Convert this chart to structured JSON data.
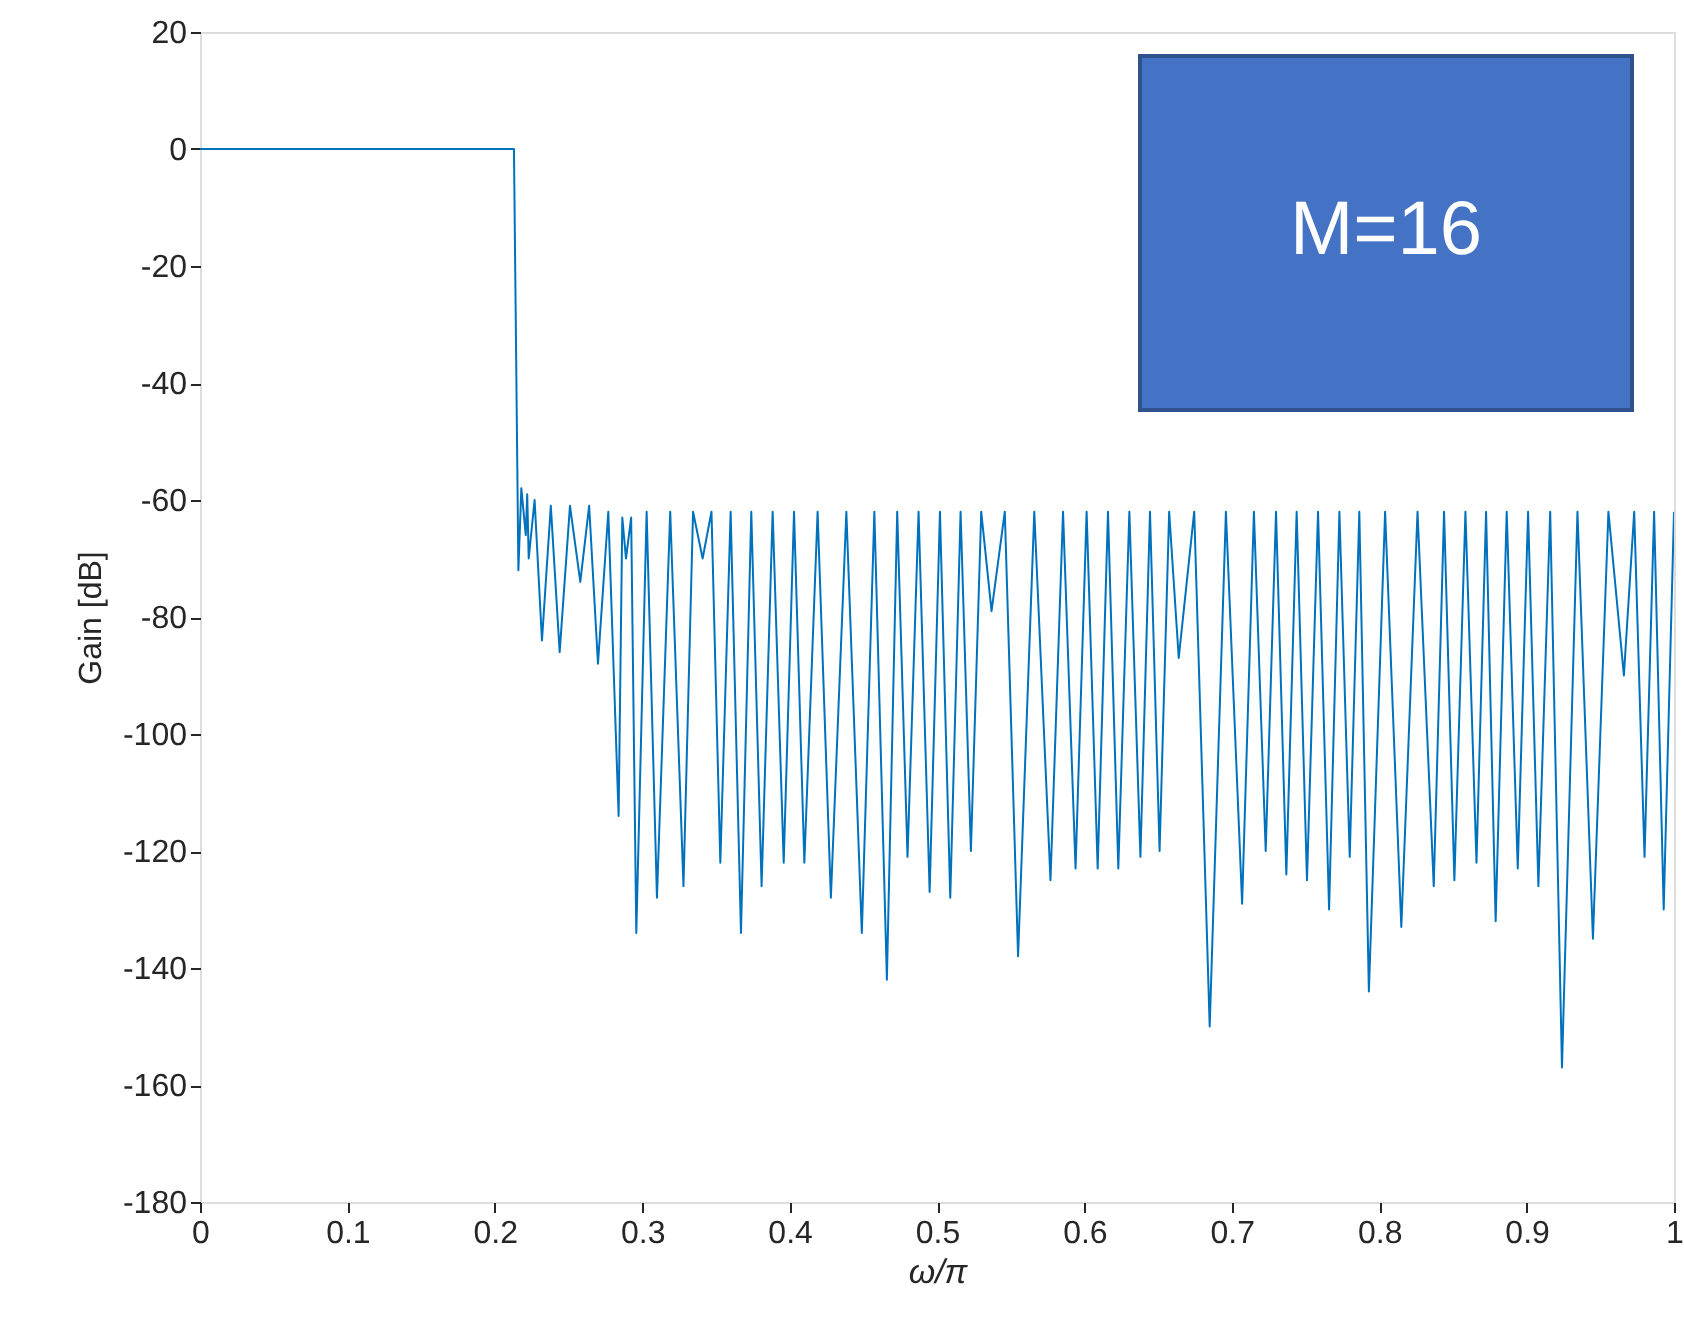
{
  "chart_data": {
    "type": "line",
    "xlabel": "ω/π",
    "ylabel": "Gain [dB]",
    "annotations": [
      "M=16"
    ],
    "xlim": [
      0,
      1
    ],
    "xticks": [
      0,
      0.1,
      0.2,
      0.3,
      0.4,
      0.5,
      0.6,
      0.7,
      0.8,
      0.9,
      1
    ],
    "ylim": [
      -180,
      20
    ],
    "yticks": [
      -180,
      -160,
      -140,
      -120,
      -100,
      -80,
      -60,
      -40,
      -20,
      0,
      20
    ],
    "grid": false,
    "marker": "none",
    "line_style": "solid",
    "series": [
      {
        "color": "#0072bd",
        "x": [
          0,
          0.213,
          0.216,
          0.218,
          0.221,
          0.222,
          0.223,
          0.227,
          0.232,
          0.238,
          0.244,
          0.251,
          0.258,
          0.264,
          0.27,
          0.277,
          0.284,
          0.2865,
          0.289,
          0.2925,
          0.296,
          0.303,
          0.31,
          0.319,
          0.328,
          0.3345,
          0.341,
          0.347,
          0.353,
          0.36,
          0.367,
          0.374,
          0.381,
          0.3885,
          0.396,
          0.403,
          0.41,
          0.419,
          0.428,
          0.4385,
          0.449,
          0.4575,
          0.466,
          0.473,
          0.48,
          0.4875,
          0.495,
          0.502,
          0.509,
          0.516,
          0.523,
          0.53,
          0.537,
          0.546,
          0.555,
          0.566,
          0.577,
          0.5855,
          0.594,
          0.6015,
          0.609,
          0.616,
          0.623,
          0.6305,
          0.638,
          0.6445,
          0.651,
          0.6575,
          0.664,
          0.6745,
          0.685,
          0.696,
          0.707,
          0.715,
          0.723,
          0.73,
          0.737,
          0.744,
          0.751,
          0.7585,
          0.766,
          0.773,
          0.78,
          0.7865,
          0.793,
          0.804,
          0.815,
          0.826,
          0.837,
          0.844,
          0.851,
          0.8585,
          0.866,
          0.8725,
          0.879,
          0.8865,
          0.894,
          0.901,
          0.908,
          0.916,
          0.924,
          0.9345,
          0.945,
          0.9555,
          0.966,
          0.973,
          0.98,
          0.9865,
          0.993,
          1.0
        ],
        "values": [
          0,
          0,
          -72,
          -58,
          -66,
          -59,
          -70,
          -60,
          -84,
          -61,
          -86,
          -61,
          -74,
          -61,
          -88,
          -62,
          -114,
          -63,
          -70,
          -63,
          -134,
          -62,
          -128,
          -62,
          -126,
          -62,
          -70,
          -62,
          -122,
          -62,
          -134,
          -62,
          -126,
          -62,
          -122,
          -62,
          -122,
          -62,
          -128,
          -62,
          -134,
          -62,
          -142,
          -62,
          -121,
          -62,
          -127,
          -62,
          -128,
          -62,
          -120,
          -62,
          -79,
          -62,
          -138,
          -62,
          -125,
          -62,
          -123,
          -62,
          -123,
          -62,
          -123,
          -62,
          -121,
          -62,
          -120,
          -62,
          -87,
          -62,
          -150,
          -62,
          -129,
          -62,
          -120,
          -62,
          -124,
          -62,
          -125,
          -62,
          -130,
          -62,
          -121,
          -62,
          -144,
          -62,
          -133,
          -62,
          -126,
          -62,
          -125,
          -62,
          -122,
          -62,
          -132,
          -62,
          -123,
          -62,
          -126,
          -62,
          -157,
          -62,
          -135,
          -62,
          -90,
          -62,
          -121,
          -62,
          -130,
          -62
        ]
      }
    ]
  }
}
